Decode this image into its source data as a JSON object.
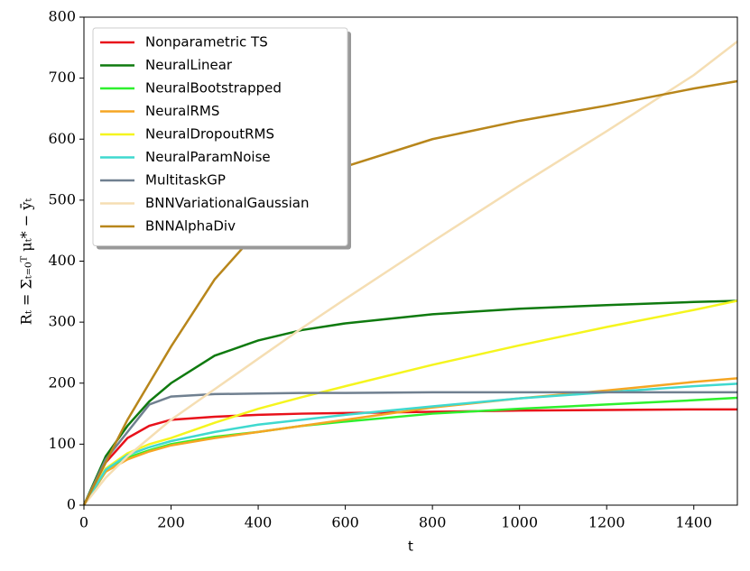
{
  "chart_data": {
    "type": "line",
    "x_label": "t",
    "y_label": "Rₜ = Σₜ₌₀ᵀ μₜ* − ȳₜ",
    "x": [
      0,
      50,
      100,
      150,
      200,
      300,
      400,
      500,
      600,
      800,
      1000,
      1200,
      1400,
      1500
    ],
    "xlim": [
      0,
      1500
    ],
    "xticks": [
      0,
      200,
      400,
      600,
      800,
      1000,
      1200,
      1400
    ],
    "ylim": [
      0,
      800
    ],
    "yticks": [
      0,
      100,
      200,
      300,
      400,
      500,
      600,
      700,
      800
    ],
    "legend": "upper-left",
    "series": [
      {
        "name": "Nonparametric TS",
        "color": "#e8111a",
        "values": [
          0,
          70,
          110,
          130,
          140,
          145,
          148,
          150,
          151,
          153,
          155,
          156,
          157,
          157
        ]
      },
      {
        "name": "NeuralLinear",
        "color": "#0f7a0f",
        "values": [
          0,
          80,
          130,
          170,
          200,
          245,
          270,
          287,
          298,
          313,
          322,
          328,
          333,
          335
        ]
      },
      {
        "name": "NeuralBootstrapped",
        "color": "#2ef02e",
        "values": [
          0,
          55,
          78,
          90,
          100,
          112,
          120,
          130,
          137,
          150,
          158,
          165,
          172,
          176
        ]
      },
      {
        "name": "NeuralRMS",
        "color": "#f5a623",
        "values": [
          0,
          55,
          75,
          88,
          98,
          110,
          120,
          130,
          140,
          160,
          175,
          188,
          202,
          208
        ]
      },
      {
        "name": "NeuralDropoutRMS",
        "color": "#f5f51e",
        "values": [
          0,
          60,
          85,
          100,
          110,
          135,
          158,
          177,
          195,
          230,
          262,
          292,
          320,
          335
        ]
      },
      {
        "name": "NeuralParamNoise",
        "color": "#3fd9cf",
        "values": [
          0,
          58,
          82,
          95,
          105,
          120,
          132,
          140,
          148,
          162,
          175,
          185,
          195,
          199
        ]
      },
      {
        "name": "MultitaskGP",
        "color": "#708090",
        "values": [
          0,
          75,
          120,
          165,
          178,
          182,
          183,
          184,
          184,
          185,
          185,
          185,
          185,
          185
        ]
      },
      {
        "name": "BNNVariationalGaussian",
        "color": "#f5deb3",
        "values": [
          0,
          45,
          80,
          110,
          140,
          190,
          240,
          290,
          338,
          432,
          524,
          613,
          705,
          760
        ]
      },
      {
        "name": "BNNAlphaDiv",
        "color": "#b8861b",
        "values": [
          0,
          70,
          140,
          200,
          260,
          370,
          450,
          520,
          555,
          600,
          630,
          655,
          683,
          695
        ]
      }
    ]
  }
}
